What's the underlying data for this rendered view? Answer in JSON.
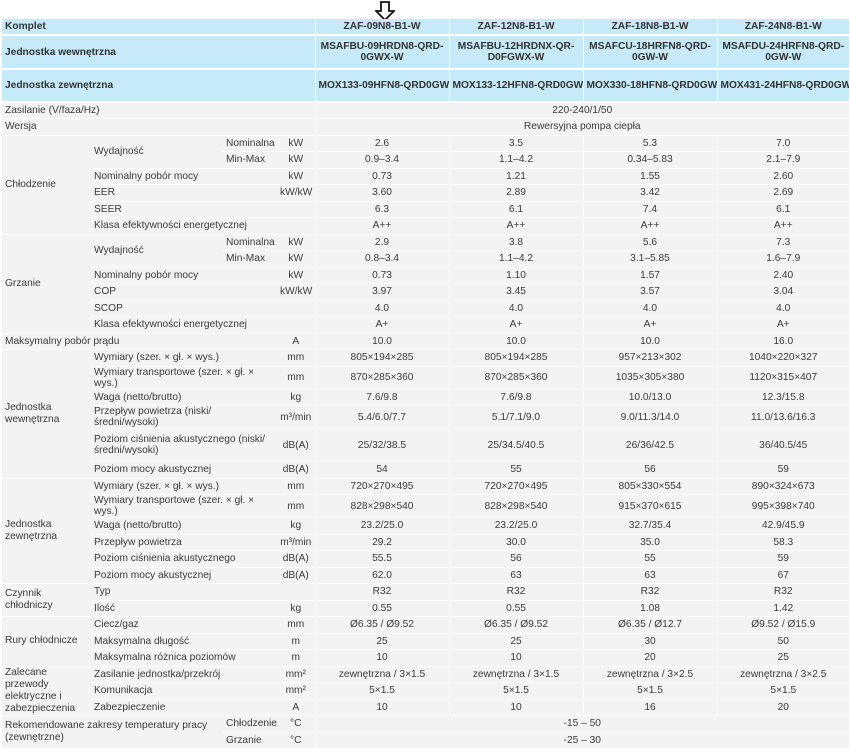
{
  "header": {
    "rows": [
      {
        "label": "Komplet",
        "values": [
          "ZAF-09N8-B1-W",
          "ZAF-12N8-B1-W",
          "ZAF-18N8-B1-W",
          "ZAF-24N8-B1-W"
        ]
      },
      {
        "label": "Jednostka wewnętrzna",
        "values": [
          "MSAFBU-09HRDN8-QRD-0GWX-W",
          "MSAFBU-12HRDNX-QR-D0FGWX-W",
          "MSAFCU-18HRFN8-QRD-0GW-W",
          "MSAFDU-24HRFN8-QRD-0GW-W"
        ]
      },
      {
        "label": "Jednostka zewnętrzna",
        "values": [
          "MOX133-09HFN8-QRD0GW",
          "MOX133-12HFN8-QRD0GW",
          "MOX330-18HFN8-QRD0GW",
          "MOX431-24HFN8-QRD0GW"
        ]
      }
    ]
  },
  "power": {
    "label": "Zasilanie (V/faza/Hz)",
    "value": "220-240/1/50"
  },
  "version": {
    "label": "Wersja",
    "value": "Rewersyjna pompa ciepła"
  },
  "cooling": {
    "group": "Chłodzenie",
    "capacity": "Wydajność",
    "rows": [
      {
        "label": "Nominalna",
        "unit": "kW",
        "values": [
          "2.6",
          "3.5",
          "5.3",
          "7.0"
        ]
      },
      {
        "label": "Min-Max",
        "unit": "kW",
        "values": [
          "0.9–3.4",
          "1.1–4.2",
          "0.34–5.83",
          "2.1–7.9"
        ]
      },
      {
        "label": "Nominalny pobór mocy",
        "unit": "kW",
        "values": [
          "0.73",
          "1.21",
          "1.55",
          "2.60"
        ]
      },
      {
        "label": "EER",
        "unit": "kW/kW",
        "values": [
          "3.60",
          "2.89",
          "3.42",
          "2.69"
        ]
      },
      {
        "label": "SEER",
        "unit": "",
        "values": [
          "6.3",
          "6.1",
          "7.4",
          "6.1"
        ]
      },
      {
        "label": "Klasa efektywności energetycznej",
        "unit": "",
        "values": [
          "A++",
          "A++",
          "A++",
          "A++"
        ]
      }
    ]
  },
  "heating": {
    "group": "Grzanie",
    "capacity": "Wydajność",
    "rows": [
      {
        "label": "Nominalna",
        "unit": "kW",
        "values": [
          "2.9",
          "3.8",
          "5.6",
          "7.3"
        ]
      },
      {
        "label": "Min-Max",
        "unit": "kW",
        "values": [
          "0.8–3.4",
          "1.1–4.2",
          "3.1–5.85",
          "1.6–7.9"
        ]
      },
      {
        "label": "Nominalny pobór mocy",
        "unit": "kW",
        "values": [
          "0.73",
          "1.10",
          "1.57",
          "2.40"
        ]
      },
      {
        "label": "COP",
        "unit": "kW/kW",
        "values": [
          "3.97",
          "3.45",
          "3.57",
          "3.04"
        ]
      },
      {
        "label": "SCOP",
        "unit": "",
        "values": [
          "4.0",
          "4.0",
          "4.0",
          "4.0"
        ]
      },
      {
        "label": "Klasa efektywności energetycznej",
        "unit": "",
        "values": [
          "A+",
          "A+",
          "A+",
          "A+"
        ]
      }
    ]
  },
  "max_current": {
    "label": "Maksymalny pobór prądu",
    "unit": "A",
    "values": [
      "10.0",
      "10.0",
      "10.0",
      "16.0"
    ]
  },
  "indoor": {
    "group": "Jednostka wewnętrzna",
    "rows": [
      {
        "label": "Wymiary (szer. × gł. × wys.)",
        "unit": "mm",
        "values": [
          "805×194×285",
          "805×194×285",
          "957×213×302",
          "1040×220×327"
        ]
      },
      {
        "label": "Wymiary transportowe (szer. × gł. × wys.)",
        "unit": "mm",
        "values": [
          "870×285×360",
          "870×285×360",
          "1035×305×380",
          "1120×315×407"
        ]
      },
      {
        "label": "Waga (netto/brutto)",
        "unit": "kg",
        "values": [
          "7.6/9.8",
          "7.6/9.8",
          "10.0/13.0",
          "12.3/15.8"
        ]
      },
      {
        "label": "Przepływ powietrza (niski/średni/wysoki)",
        "unit": "m³/min",
        "values": [
          "5.4/6.0/7.7",
          "5.1/7.1/9.0",
          "9.0/11.3/14.0",
          "11.0/13.6/16.3"
        ]
      },
      {
        "label": "Poziom ciśnienia akustycznego (niski/średni/wysoki)",
        "unit": "dB(A)",
        "values": [
          "25/32/38.5",
          "25/34.5/40.5",
          "26/36/42.5",
          "36/40.5/45"
        ]
      },
      {
        "label": "Poziom mocy akustycznej",
        "unit": "dB(A)",
        "values": [
          "54",
          "55",
          "56",
          "59"
        ]
      }
    ]
  },
  "outdoor": {
    "group": "Jednostka zewnętrzna",
    "rows": [
      {
        "label": "Wymiary (szer. × gł. × wys.)",
        "unit": "mm",
        "values": [
          "720×270×495",
          "720×270×495",
          "805×330×554",
          "890×324×673"
        ]
      },
      {
        "label": "Wymiary transportowe (szer. × gł. × wys.)",
        "unit": "mm",
        "values": [
          "828×298×540",
          "828×298×540",
          "915×370×615",
          "995×398×740"
        ]
      },
      {
        "label": "Waga (netto/brutto)",
        "unit": "kg",
        "values": [
          "23.2/25.0",
          "23.2/25.0",
          "32.7/35.4",
          "42.9/45.9"
        ]
      },
      {
        "label": "Przepływ powietrza",
        "unit": "m³/min",
        "values": [
          "29.2",
          "30.0",
          "35.0",
          "58.3"
        ]
      },
      {
        "label": "Poziom ciśnienia akustycznego",
        "unit": "dB(A)",
        "values": [
          "55.5",
          "56",
          "55",
          "59"
        ]
      },
      {
        "label": "Poziom mocy akustycznej",
        "unit": "dB(A)",
        "values": [
          "62.0",
          "63",
          "63",
          "67"
        ]
      }
    ]
  },
  "refrigerant": {
    "group": "Czynnik chłodniczy",
    "rows": [
      {
        "label": "Typ",
        "unit": "",
        "values": [
          "R32",
          "R32",
          "R32",
          "R32"
        ]
      },
      {
        "label": "Ilość",
        "unit": "kg",
        "values": [
          "0.55",
          "0.55",
          "1.08",
          "1.42"
        ]
      }
    ]
  },
  "piping": {
    "group": "Rury chłodnicze",
    "rows": [
      {
        "label": "Ciecz/gaz",
        "unit": "mm",
        "values": [
          "Ø6.35 / Ø9.52",
          "Ø6.35 / Ø9.52",
          "Ø6.35 / Ø12.7",
          "Ø9.52 / Ø15.9"
        ]
      },
      {
        "label": "Maksymalna długość",
        "unit": "m",
        "values": [
          "25",
          "25",
          "30",
          "50"
        ]
      },
      {
        "label": "Maksymalna różnica poziomów",
        "unit": "m",
        "values": [
          "10",
          "10",
          "20",
          "25"
        ]
      }
    ]
  },
  "wiring": {
    "group": "Zalecane przewody elektryczne i zabezpieczenia",
    "rows": [
      {
        "label": "Zasilanie jednostka/przekrój",
        "unit": "mm²",
        "values": [
          "zewnętrzna / 3×1.5",
          "zewnętrzna / 3×1.5",
          "zewnętrzna / 3×2.5",
          "zewnętrzna / 3×2.5"
        ]
      },
      {
        "label": "Komunikacja",
        "unit": "mm²",
        "values": [
          "5×1.5",
          "5×1.5",
          "5×1.5",
          "5×1.5"
        ]
      },
      {
        "label": "Zabezpieczenie",
        "unit": "A",
        "values": [
          "10",
          "10",
          "16",
          "20"
        ]
      }
    ]
  },
  "temperature": {
    "group": "Rekomendowane zakresy temperatury pracy (zewnętrzne)",
    "rows": [
      {
        "label": "Chłodzenie",
        "unit": "°C",
        "value": "-15 – 50"
      },
      {
        "label": "Grzanie",
        "unit": "°C",
        "value": "-25 – 30"
      }
    ]
  }
}
